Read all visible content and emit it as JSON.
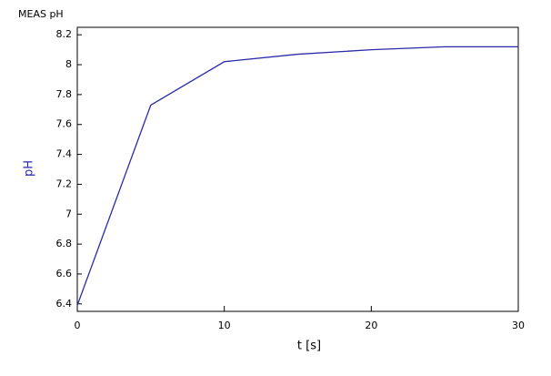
{
  "chart_data": {
    "type": "line",
    "title": "MEAS pH",
    "xlabel": "t [s]",
    "ylabel": "pH",
    "x": [
      0,
      5,
      10,
      15,
      20,
      25,
      30
    ],
    "series": [
      {
        "name": "pH",
        "color": "#2a2aa8",
        "values": [
          6.39,
          7.73,
          8.02,
          8.07,
          8.1,
          8.12,
          8.12
        ]
      }
    ],
    "xlim": [
      0,
      30
    ],
    "xticks": [
      0,
      10,
      20,
      30
    ],
    "ylim": [
      6.35,
      8.25
    ],
    "yticks": [
      6.4,
      6.6,
      6.8,
      7,
      7.2,
      7.4,
      7.6,
      7.8,
      8,
      8.2
    ],
    "ylabel_color": "#2a2aa8",
    "grid": false
  }
}
